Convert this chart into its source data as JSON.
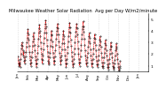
{
  "title": "Milwaukee Weather Solar Radiation  Avg per Day W/m2/minute",
  "title_fontsize": 3.8,
  "bg_color": "#ffffff",
  "line_color": "#ff0000",
  "marker_color": "#000000",
  "grid_color": "#bbbbbb",
  "ylim": [
    0.5,
    5.5
  ],
  "yticks": [
    1,
    2,
    3,
    4,
    5
  ],
  "ylabel_fontsize": 3.2,
  "xlabel_fontsize": 2.8,
  "y_values": [
    1.8,
    1.5,
    1.2,
    1.0,
    1.3,
    1.1,
    0.9,
    1.6,
    2.0,
    2.5,
    2.8,
    3.0,
    2.7,
    2.3,
    1.9,
    2.2,
    1.7,
    1.4,
    1.2,
    1.5,
    1.8,
    2.2,
    2.6,
    3.0,
    3.4,
    3.8,
    4.1,
    3.7,
    3.2,
    2.7,
    2.2,
    1.8,
    1.5,
    1.2,
    1.0,
    1.3,
    1.7,
    2.2,
    2.7,
    3.1,
    3.5,
    3.8,
    3.3,
    2.8,
    2.3,
    1.8,
    1.5,
    1.2,
    0.9,
    1.2,
    1.6,
    2.1,
    2.7,
    3.3,
    3.8,
    4.2,
    4.5,
    4.0,
    3.5,
    3.0,
    2.5,
    2.0,
    1.6,
    1.2,
    1.5,
    1.9,
    2.4,
    2.9,
    3.4,
    3.8,
    4.2,
    4.6,
    4.9,
    4.4,
    3.8,
    3.2,
    2.7,
    2.2,
    1.8,
    1.4,
    1.1,
    1.3,
    1.7,
    2.1,
    2.7,
    3.2,
    3.7,
    4.0,
    3.6,
    3.1,
    2.6,
    2.1,
    1.7,
    1.4,
    1.1,
    1.4,
    1.8,
    2.3,
    2.8,
    3.3,
    3.7,
    4.0,
    4.3,
    4.6,
    4.2,
    3.7,
    3.1,
    2.6,
    2.1,
    1.7,
    1.4,
    1.1,
    1.5,
    1.9,
    2.4,
    2.9,
    3.3,
    3.7,
    4.0,
    3.5,
    2.9,
    2.4,
    1.9,
    1.5,
    1.2,
    0.9,
    1.2,
    1.6,
    2.1,
    2.6,
    3.1,
    3.5,
    3.9,
    4.3,
    4.7,
    4.3,
    3.8,
    3.2,
    2.7,
    2.2,
    1.8,
    1.4,
    1.1,
    0.9,
    1.2,
    1.6,
    2.0,
    2.5,
    3.0,
    3.5,
    3.9,
    4.3,
    4.6,
    4.2,
    3.7,
    3.1,
    2.5,
    2.0,
    1.6,
    1.3,
    1.0,
    1.3,
    1.8,
    2.3,
    2.8,
    3.3,
    3.7,
    4.1,
    4.4,
    4.8,
    4.4,
    3.9,
    3.3,
    2.8,
    2.3,
    1.9,
    1.5,
    1.2,
    1.0,
    1.3,
    1.7,
    2.1,
    2.6,
    3.1,
    3.5,
    3.8,
    3.4,
    2.9,
    2.4,
    1.9,
    1.5,
    1.2,
    0.9,
    1.2,
    1.6,
    2.0,
    2.5,
    3.0,
    3.4,
    3.7,
    3.3,
    2.8,
    2.3,
    1.8,
    1.4,
    1.1,
    0.9,
    1.1,
    1.5,
    1.9,
    2.4,
    2.8,
    3.2,
    3.5,
    3.1,
    2.6,
    2.1,
    1.7,
    1.3,
    1.0,
    0.8,
    1.0,
    1.3,
    1.7,
    2.1,
    2.5,
    2.9,
    3.2,
    2.8,
    2.3,
    1.9,
    1.5,
    1.1,
    0.9,
    0.7,
    0.9,
    1.2,
    1.6,
    2.0,
    2.4,
    2.7,
    3.0,
    2.6,
    2.1,
    1.7,
    1.3,
    1.0,
    0.8,
    0.7,
    0.9,
    1.2,
    1.5,
    1.9,
    2.3,
    2.6,
    2.9,
    2.5,
    2.0,
    1.6,
    1.2,
    0.9,
    0.7,
    0.6,
    0.8,
    1.0,
    1.4
  ],
  "x_tick_positions": [
    0,
    26,
    52,
    78,
    104,
    130,
    156,
    182,
    208,
    234,
    260,
    286,
    312,
    338
  ],
  "x_tick_labels": [
    "Jan",
    "Feb",
    "Mar",
    "Apr",
    "May",
    "Jun",
    "Jul",
    "Aug",
    "Sep",
    "Oct",
    "Nov",
    "Dec",
    "Jan",
    ""
  ]
}
